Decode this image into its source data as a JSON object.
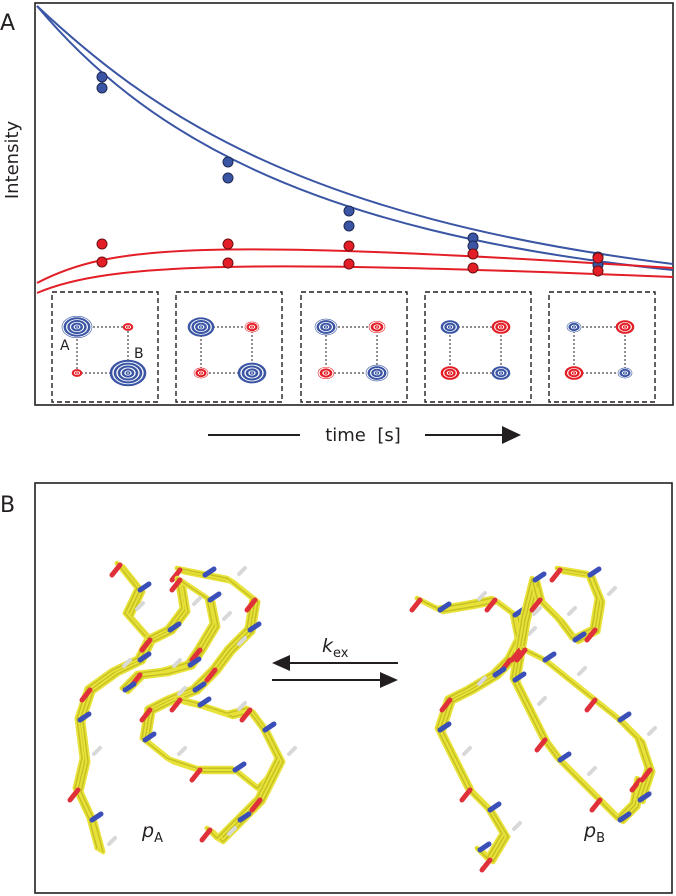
{
  "panel_a": {
    "label": "A",
    "y_label": "Intensity",
    "x_label": "time  [s]",
    "peak_labels": [
      "A",
      "B"
    ]
  },
  "panel_b": {
    "label": "B",
    "rate": {
      "symbol": "k",
      "subscript": "ex"
    },
    "states": [
      {
        "symbol": "p",
        "subscript": "A"
      },
      {
        "symbol": "p",
        "subscript": "B"
      }
    ]
  }
}
